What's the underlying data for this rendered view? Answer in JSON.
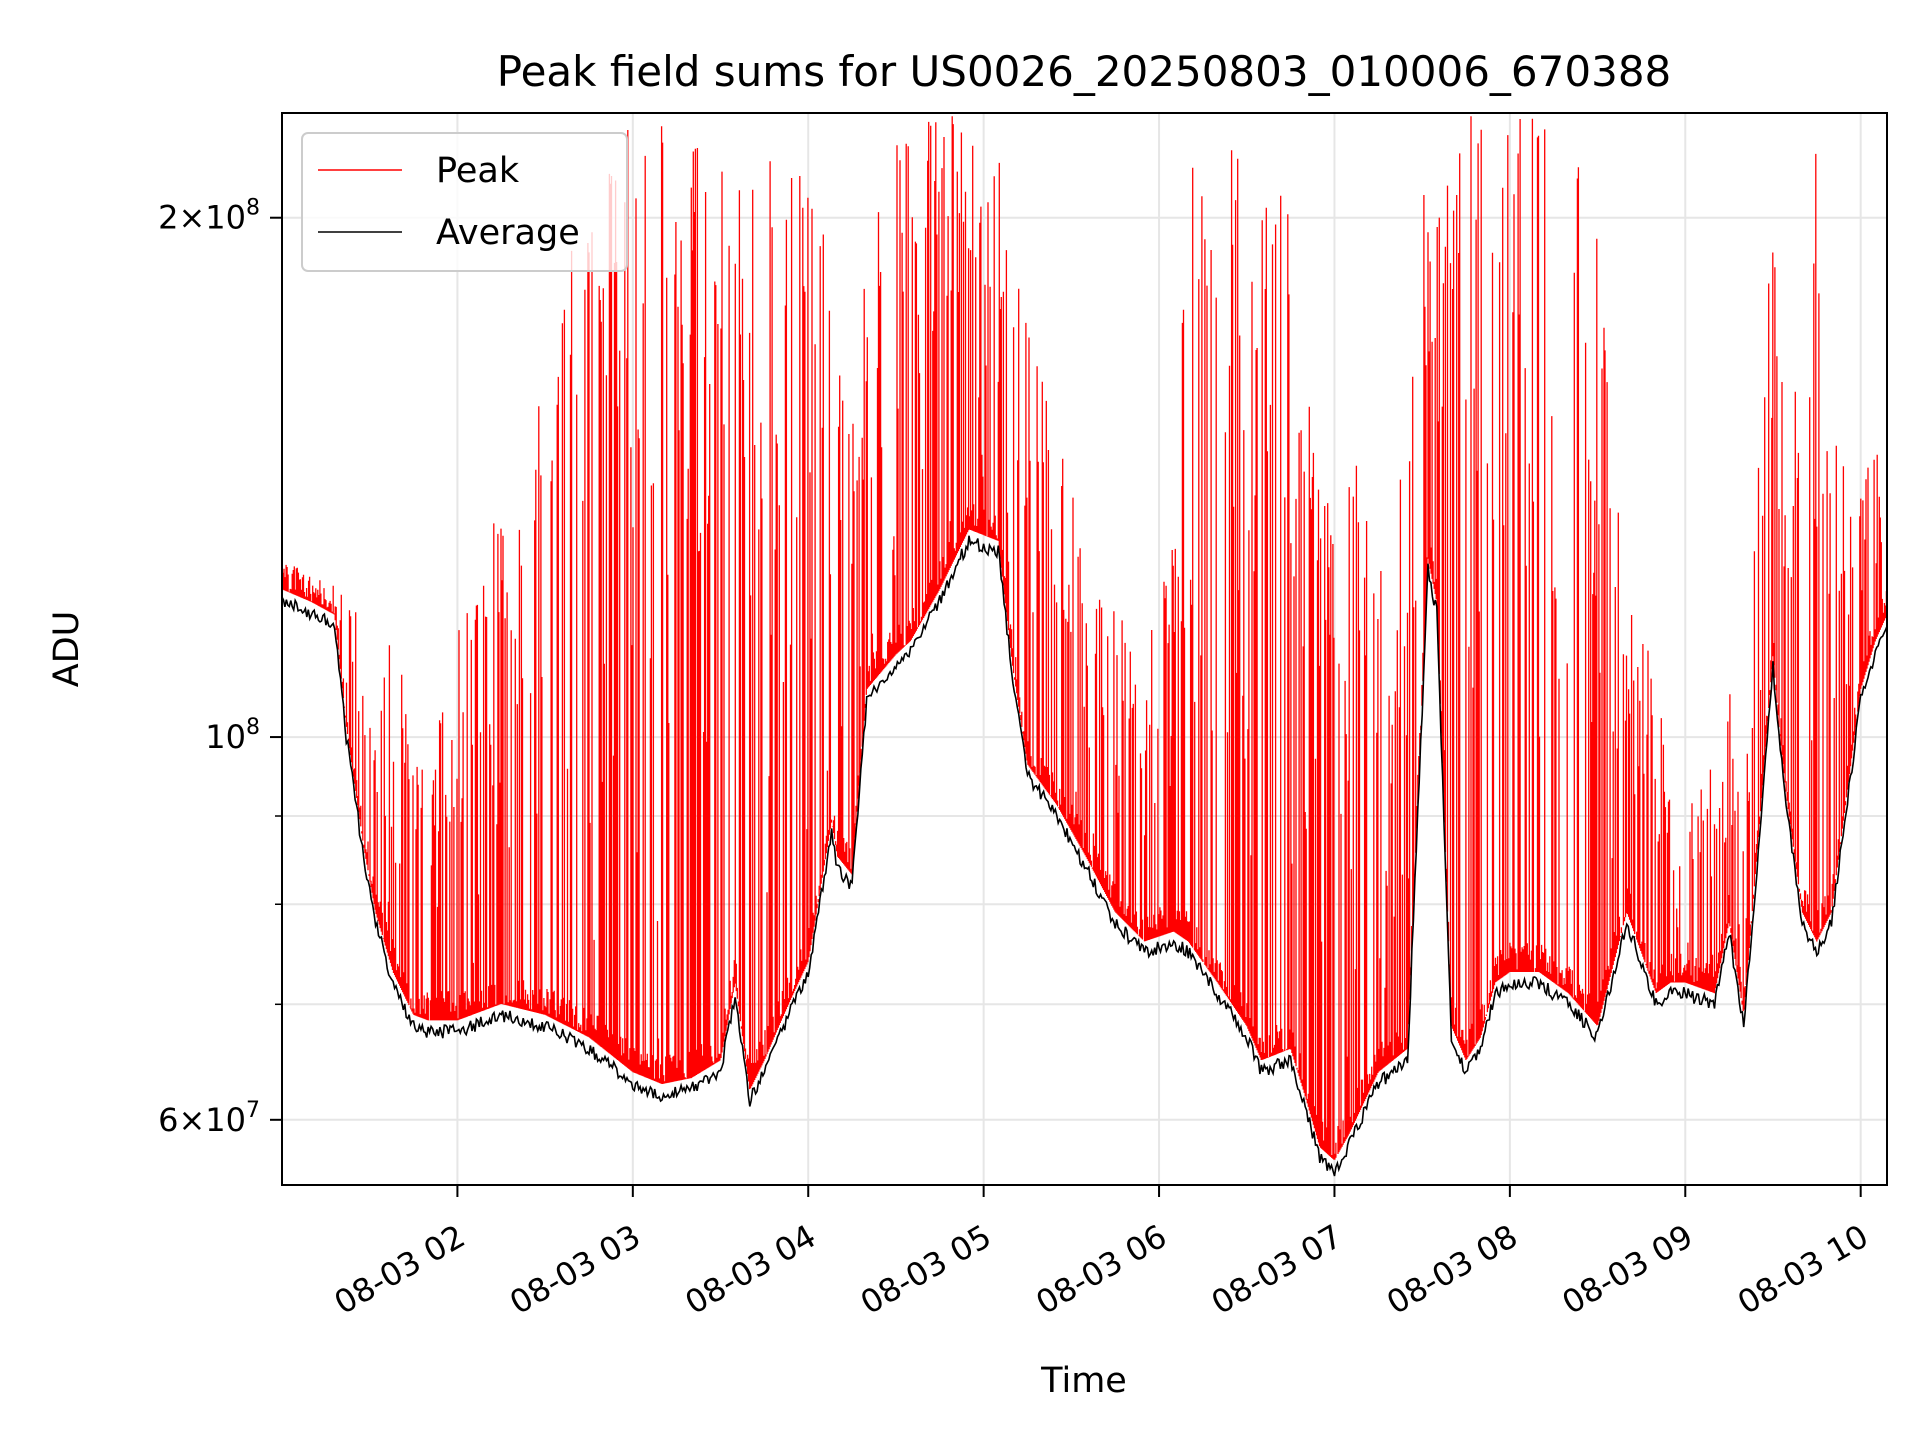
{
  "chart_data": {
    "type": "line",
    "title": "Peak field sums for US0026_20250803_010006_670388",
    "xlabel": "Time",
    "ylabel": "ADU",
    "x_axis": {
      "ticks": [
        "08-03 02",
        "08-03 03",
        "08-03 04",
        "08-03 05",
        "08-03 06",
        "08-03 07",
        "08-03 08",
        "08-03 09",
        "08-03 10"
      ],
      "range": [
        "08-03 01:00",
        "08-03 10:09"
      ]
    },
    "y_axis": {
      "scale": "log",
      "range": [
        55000000,
        230000000
      ],
      "major_ticks": [
        {
          "value": 60000000,
          "mant": "6",
          "exp": "7"
        },
        {
          "value": 100000000,
          "mant": "",
          "exp": "8"
        },
        {
          "value": 200000000,
          "mant": "2",
          "exp": "8"
        }
      ],
      "minor_ticks": [
        70000000,
        80000000,
        90000000
      ]
    },
    "grid": true,
    "legend": {
      "placement": "upper-left",
      "entries": [
        {
          "label": "Peak",
          "color": "#ff0000"
        },
        {
          "label": "Average",
          "color": "#000000"
        }
      ]
    },
    "series": [
      {
        "name": "Average",
        "color": "#000000",
        "x": [
          "01:00",
          "01:10",
          "01:18",
          "01:22",
          "01:28",
          "01:32",
          "01:38",
          "01:45",
          "01:50",
          "02:00",
          "02:15",
          "02:30",
          "02:45",
          "03:00",
          "03:10",
          "03:20",
          "03:30",
          "03:35",
          "03:40",
          "03:45",
          "03:50",
          "03:55",
          "04:00",
          "04:08",
          "04:10",
          "04:15",
          "04:20",
          "04:30",
          "04:35",
          "04:45",
          "04:55",
          "05:05",
          "05:10",
          "05:15",
          "05:25",
          "05:35",
          "05:45",
          "05:55",
          "06:05",
          "06:10",
          "06:20",
          "06:30",
          "06:35",
          "06:45",
          "06:50",
          "06:55",
          "07:00",
          "07:05",
          "07:15",
          "07:25",
          "07:32",
          "07:35",
          "07:40",
          "07:45",
          "07:50",
          "07:55",
          "08:00",
          "08:10",
          "08:20",
          "08:30",
          "08:40",
          "08:50",
          "08:55",
          "09:00",
          "09:10",
          "09:15",
          "09:20",
          "09:25",
          "09:30",
          "09:32",
          "09:35",
          "09:40",
          "09:45",
          "09:50",
          "10:00",
          "10:05",
          "10:09"
        ],
        "y": [
          120000000,
          118000000,
          116000000,
          100000000,
          85000000,
          78000000,
          72000000,
          68000000,
          67500000,
          67500000,
          69000000,
          68000000,
          66000000,
          63000000,
          62000000,
          62500000,
          64000000,
          71000000,
          61500000,
          64000000,
          67000000,
          70000000,
          73000000,
          88000000,
          84000000,
          82000000,
          105000000,
          110000000,
          112000000,
          120000000,
          130000000,
          128000000,
          108000000,
          95000000,
          90000000,
          84000000,
          78000000,
          75000000,
          76000000,
          75000000,
          71000000,
          67000000,
          64000000,
          65000000,
          61000000,
          57000000,
          56000000,
          58000000,
          63000000,
          65000000,
          125000000,
          118000000,
          67000000,
          64000000,
          66000000,
          71000000,
          72000000,
          72000000,
          70000000,
          67000000,
          78000000,
          70000000,
          71000000,
          71000000,
          70000000,
          77000000,
          68000000,
          86000000,
          110000000,
          100000000,
          90000000,
          78000000,
          75000000,
          78000000,
          105000000,
          112000000,
          116000000
        ]
      },
      {
        "name": "Peak",
        "color": "#ff0000",
        "x": [
          "01:00",
          "01:10",
          "01:18",
          "01:22",
          "01:28",
          "01:32",
          "01:38",
          "01:45",
          "01:50",
          "02:00",
          "02:15",
          "02:30",
          "02:45",
          "03:00",
          "03:10",
          "03:20",
          "03:30",
          "03:35",
          "03:40",
          "03:45",
          "03:50",
          "03:55",
          "04:00",
          "04:08",
          "04:10",
          "04:15",
          "04:20",
          "04:30",
          "04:35",
          "04:45",
          "04:55",
          "05:05",
          "05:10",
          "05:15",
          "05:25",
          "05:35",
          "05:45",
          "05:55",
          "06:05",
          "06:10",
          "06:20",
          "06:30",
          "06:35",
          "06:45",
          "06:50",
          "06:55",
          "07:00",
          "07:05",
          "07:15",
          "07:25",
          "07:32",
          "07:35",
          "07:40",
          "07:45",
          "07:50",
          "07:55",
          "08:00",
          "08:10",
          "08:20",
          "08:30",
          "08:40",
          "08:50",
          "08:55",
          "09:00",
          "09:10",
          "09:15",
          "09:20",
          "09:25",
          "09:30",
          "09:32",
          "09:35",
          "09:40",
          "09:45",
          "09:50",
          "10:00",
          "10:05",
          "10:09"
        ],
        "y": [
          125000000,
          123000000,
          119000000,
          130000000,
          110000000,
          100000000,
          120000000,
          105000000,
          95000000,
          115000000,
          140000000,
          160000000,
          220000000,
          230000000,
          230000000,
          220000000,
          230000000,
          200000000,
          230000000,
          230000000,
          230000000,
          230000000,
          230000000,
          210000000,
          170000000,
          160000000,
          190000000,
          230000000,
          230000000,
          230000000,
          230000000,
          230000000,
          200000000,
          175000000,
          150000000,
          130000000,
          120000000,
          110000000,
          140000000,
          230000000,
          230000000,
          230000000,
          230000000,
          200000000,
          170000000,
          150000000,
          130000000,
          140000000,
          160000000,
          150000000,
          230000000,
          200000000,
          230000000,
          230000000,
          230000000,
          230000000,
          230000000,
          230000000,
          230000000,
          200000000,
          120000000,
          110000000,
          95000000,
          90000000,
          100000000,
          110000000,
          90000000,
          150000000,
          200000000,
          180000000,
          160000000,
          170000000,
          230000000,
          150000000,
          140000000,
          150000000,
          145000000
        ]
      }
    ]
  }
}
